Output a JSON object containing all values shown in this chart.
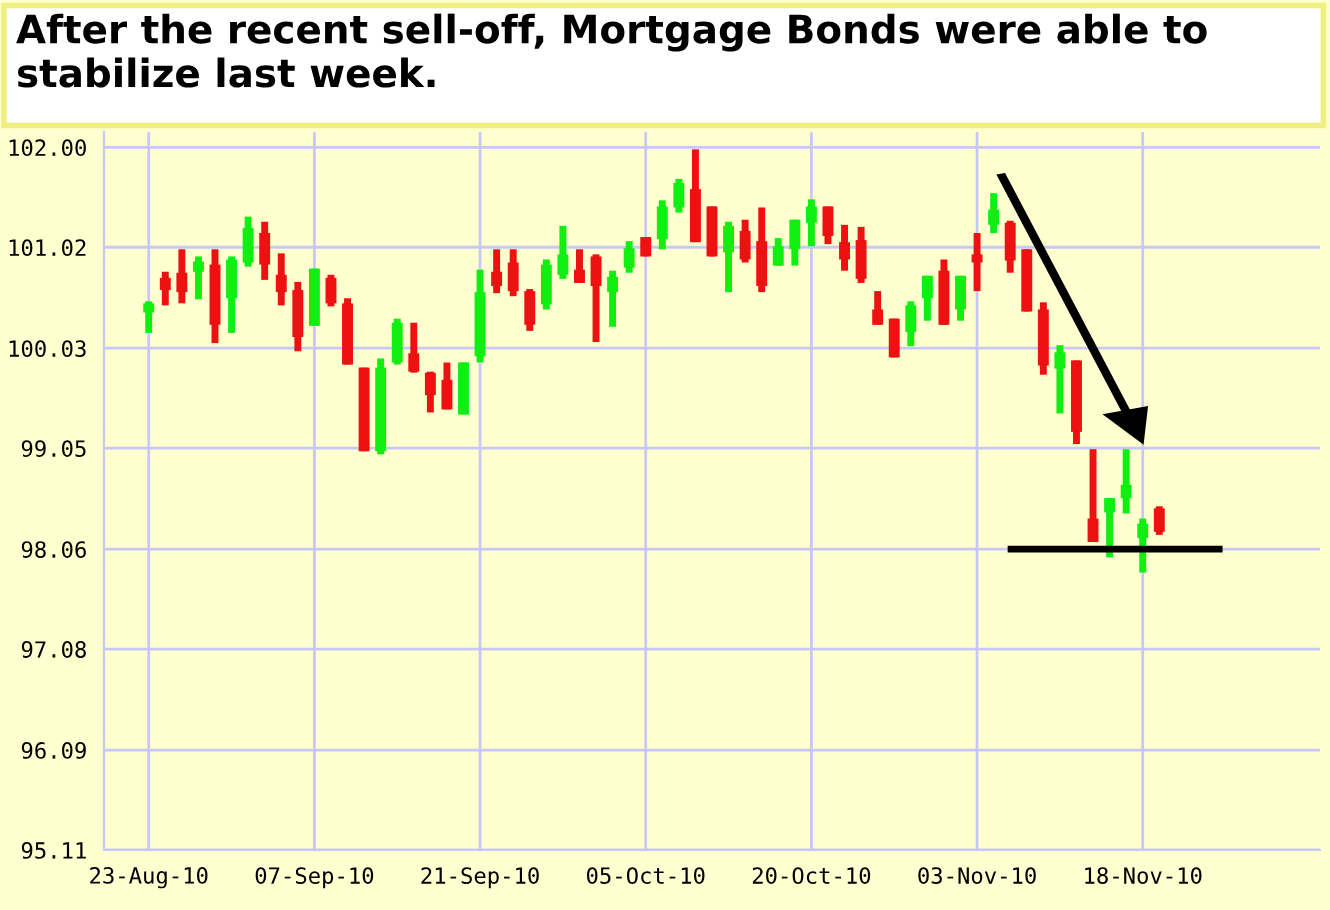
{
  "chart_data": {
    "type": "candlestick",
    "title": "After the recent sell-off, Mortgage Bonds were able to stabilize last week.",
    "categories": [
      "23-Aug-10",
      null,
      null,
      null,
      null,
      null,
      null,
      null,
      null,
      null,
      "07-Sep-10",
      null,
      null,
      null,
      null,
      null,
      null,
      null,
      null,
      null,
      "21-Sep-10",
      null,
      null,
      null,
      null,
      null,
      null,
      null,
      null,
      null,
      "05-Oct-10",
      null,
      null,
      null,
      null,
      null,
      null,
      null,
      null,
      null,
      "20-Oct-10",
      null,
      null,
      null,
      null,
      null,
      null,
      null,
      null,
      null,
      "03-Nov-10",
      null,
      null,
      null,
      null,
      null,
      null,
      null,
      null,
      null,
      "18-Nov-10",
      null
    ],
    "ohlc": [
      [
        100.38,
        100.49,
        100.18,
        100.47
      ],
      [
        100.72,
        100.78,
        100.45,
        100.6
      ],
      [
        100.77,
        101.0,
        100.47,
        100.58
      ],
      [
        100.78,
        100.93,
        100.51,
        100.88
      ],
      [
        100.85,
        101.0,
        100.08,
        100.26
      ],
      [
        100.52,
        100.93,
        100.18,
        100.9
      ],
      [
        100.87,
        101.32,
        100.83,
        101.21
      ],
      [
        101.16,
        101.27,
        100.7,
        100.85
      ],
      [
        100.75,
        100.96,
        100.45,
        100.58
      ],
      [
        100.6,
        100.68,
        100.0,
        100.14
      ],
      [
        100.25,
        100.81,
        100.25,
        100.81
      ],
      [
        100.72,
        100.75,
        100.44,
        100.47
      ],
      [
        100.47,
        100.52,
        99.87,
        99.87
      ],
      [
        99.84,
        99.84,
        99.02,
        99.02
      ],
      [
        99.02,
        99.93,
        98.99,
        99.84
      ],
      [
        99.89,
        100.32,
        99.87,
        100.28
      ],
      [
        99.98,
        100.28,
        99.79,
        99.8
      ],
      [
        99.79,
        99.8,
        99.4,
        99.57
      ],
      [
        99.72,
        99.89,
        99.43,
        99.43
      ],
      [
        99.38,
        99.89,
        99.38,
        99.89
      ],
      [
        99.95,
        100.8,
        99.89,
        100.58
      ],
      [
        100.78,
        101.0,
        100.57,
        100.64
      ],
      [
        100.87,
        101.0,
        100.54,
        100.59
      ],
      [
        100.59,
        100.61,
        100.2,
        100.26
      ],
      [
        100.46,
        100.9,
        100.41,
        100.85
      ],
      [
        100.75,
        101.23,
        100.71,
        100.95
      ],
      [
        100.8,
        101.0,
        100.67,
        100.67
      ],
      [
        100.93,
        100.95,
        100.09,
        100.64
      ],
      [
        100.58,
        100.79,
        100.24,
        100.73
      ],
      [
        100.82,
        101.08,
        100.77,
        101.01
      ],
      [
        101.12,
        101.12,
        100.93,
        100.93
      ],
      [
        101.1,
        101.48,
        101.0,
        101.42
      ],
      [
        101.41,
        101.69,
        101.36,
        101.65
      ],
      [
        101.59,
        101.98,
        101.07,
        101.07
      ],
      [
        101.42,
        101.42,
        100.93,
        100.93
      ],
      [
        100.97,
        101.27,
        100.58,
        101.23
      ],
      [
        101.18,
        101.29,
        100.87,
        100.9
      ],
      [
        101.08,
        101.41,
        100.58,
        100.64
      ],
      [
        100.84,
        101.11,
        100.84,
        101.03
      ],
      [
        101.0,
        101.29,
        100.84,
        101.29
      ],
      [
        101.26,
        101.49,
        101.03,
        101.42
      ],
      [
        101.42,
        101.42,
        101.05,
        101.13
      ],
      [
        101.07,
        101.24,
        100.79,
        100.9
      ],
      [
        101.09,
        101.22,
        100.67,
        100.71
      ],
      [
        100.41,
        100.59,
        100.26,
        100.26
      ],
      [
        100.32,
        100.32,
        99.94,
        99.94
      ],
      [
        100.19,
        100.49,
        100.05,
        100.45
      ],
      [
        100.52,
        100.74,
        100.3,
        100.74
      ],
      [
        100.79,
        100.9,
        100.26,
        100.26
      ],
      [
        100.41,
        100.74,
        100.3,
        100.74
      ],
      [
        100.95,
        101.16,
        100.59,
        100.87
      ],
      [
        101.24,
        101.55,
        101.16,
        101.39
      ],
      [
        101.26,
        101.28,
        100.77,
        100.89
      ],
      [
        101.0,
        101.0,
        100.39,
        100.39
      ],
      [
        100.41,
        100.48,
        99.77,
        99.86
      ],
      [
        99.83,
        100.06,
        99.39,
        99.99
      ],
      [
        99.91,
        99.91,
        99.09,
        99.21
      ],
      [
        98.36,
        99.04,
        98.13,
        98.13
      ],
      [
        98.42,
        98.56,
        97.98,
        98.56
      ],
      [
        98.56,
        99.04,
        98.41,
        98.69
      ],
      [
        98.17,
        98.36,
        97.83,
        98.31
      ],
      [
        98.46,
        98.48,
        98.2,
        98.23
      ]
    ],
    "colors": [
      "#11ee11",
      "#ee1111",
      "#ee1111",
      "#11ee11",
      "#ee1111",
      "#11ee11",
      "#11ee11",
      "#ee1111",
      "#ee1111",
      "#ee1111",
      "#11ee11",
      "#ee1111",
      "#ee1111",
      "#ee1111",
      "#11ee11",
      "#11ee11",
      "#ee1111",
      "#ee1111",
      "#ee1111",
      "#11ee11",
      "#11ee11",
      "#ee1111",
      "#ee1111",
      "#ee1111",
      "#11ee11",
      "#11ee11",
      "#ee1111",
      "#ee1111",
      "#11ee11",
      "#11ee11",
      "#ee1111",
      "#11ee11",
      "#11ee11",
      "#ee1111",
      "#ee1111",
      "#11ee11",
      "#ee1111",
      "#ee1111",
      "#11ee11",
      "#11ee11",
      "#11ee11",
      "#ee1111",
      "#ee1111",
      "#ee1111",
      "#ee1111",
      "#ee1111",
      "#11ee11",
      "#11ee11",
      "#ee1111",
      "#11ee11",
      "#ee1111",
      "#11ee11",
      "#ee1111",
      "#ee1111",
      "#ee1111",
      "#11ee11",
      "#ee1111",
      "#ee1111",
      "#11ee11",
      "#11ee11",
      "#11ee11",
      "#ee1111"
    ],
    "ylim": [
      95.11,
      102.15
    ],
    "yticks": [
      95.11,
      96.09,
      97.08,
      98.06,
      99.05,
      100.03,
      101.02,
      {
        "value": 102,
        "label": "102.00"
      }
    ],
    "ref_lines": [
      {
        "axis": "y",
        "value": 98.06,
        "color": "#000000"
      }
    ],
    "grid": true
  }
}
